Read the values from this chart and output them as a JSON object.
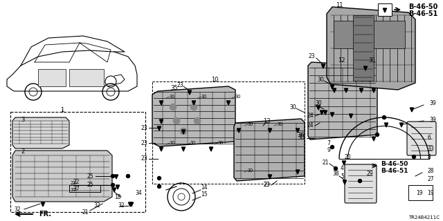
{
  "background_color": "#ffffff",
  "image_code": "TR24B4211C",
  "b_refs_top": [
    "B-46-50",
    "B-46-51"
  ],
  "b_refs_mid": [
    "B-46-50",
    "B-46-51"
  ],
  "fr_label": "FR.",
  "fig_width": 6.4,
  "fig_height": 3.2,
  "dpi": 100,
  "font_size_small": 5.5,
  "font_size_code": 5,
  "font_size_bref": 6.5
}
